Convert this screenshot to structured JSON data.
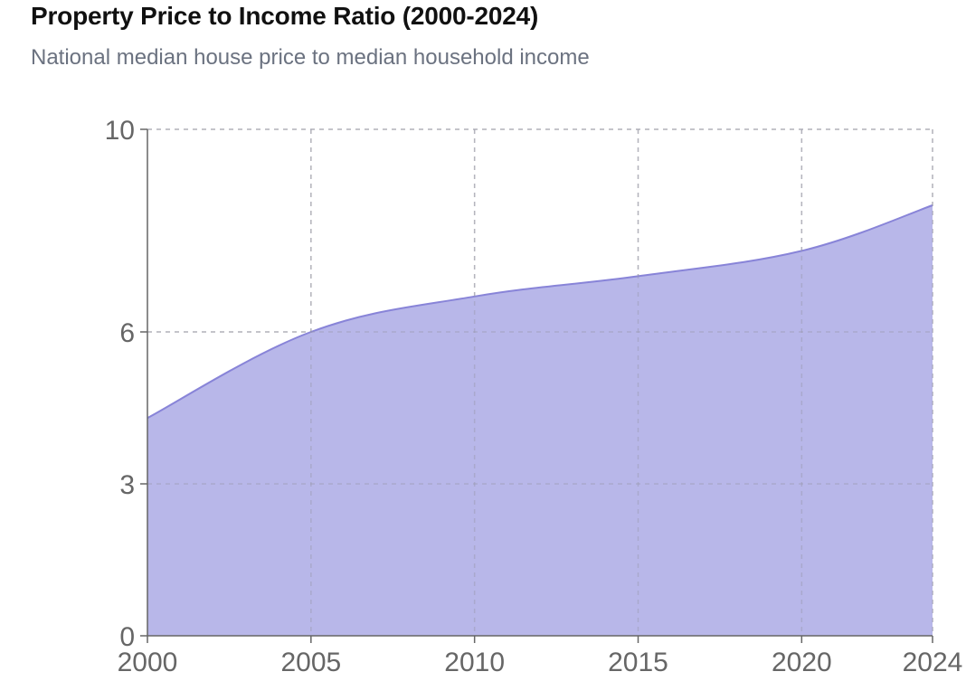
{
  "chart_data": {
    "type": "area",
    "title": "Property Price to Income Ratio (2000-2024)",
    "subtitle": "National median house price to median household income",
    "xlabel": "",
    "ylabel": "",
    "x": [
      2000,
      2005,
      2010,
      2015,
      2020,
      2024
    ],
    "x_ticks": [
      "2000",
      "2005",
      "2010",
      "2015",
      "2020",
      "2024"
    ],
    "y_ticks": [
      "0",
      "3",
      "6",
      "10"
    ],
    "xlim": [
      2000,
      2024
    ],
    "ylim": [
      0,
      10
    ],
    "y_scale": "piecewise-linear",
    "series": [
      {
        "values": [
          4.3,
          6.0,
          6.7,
          7.1,
          7.6,
          8.5
        ],
        "fill_color": "#b8b7e9",
        "line_color": "#8884d8"
      }
    ],
    "grid": true,
    "legend": "none"
  }
}
